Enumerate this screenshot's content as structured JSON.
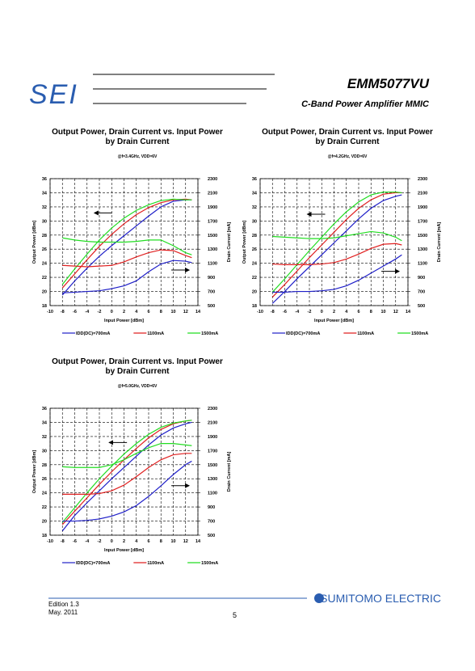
{
  "header": {
    "logo": "SEI",
    "part_number": "EMM5077VU",
    "description": "C-Band Power Amplifier MMIC"
  },
  "chart_data": [
    {
      "type": "line",
      "title": [
        "Output Power, Drain Current vs. Input Power",
        "by Drain Current"
      ],
      "conditions": "@f=3.4GHz,  VDD=6V",
      "x_label": "Input Power  [dBm]",
      "y_label": "Output Power  [dBm]",
      "y2_label": "Drain Current  [mA]",
      "x": [
        -8,
        -6,
        -4,
        -2,
        0,
        2,
        4,
        6,
        8,
        10,
        12,
        13
      ],
      "xlim": [
        -10,
        14
      ],
      "xticks": [
        -10,
        -8,
        -6,
        -4,
        -2,
        0,
        2,
        4,
        6,
        8,
        10,
        12,
        14
      ],
      "ylim": [
        18,
        36
      ],
      "yticks": [
        18,
        20,
        22,
        24,
        26,
        28,
        30,
        32,
        34,
        36
      ],
      "y2lim": [
        500,
        2300
      ],
      "y2ticks": [
        500,
        700,
        900,
        1100,
        1300,
        1500,
        1700,
        1900,
        2100,
        2300
      ],
      "grid": true,
      "series": [
        {
          "name": "IDD(DC)=700mA",
          "color": "#1f1fc8",
          "values": [
            19.5,
            21.5,
            23.3,
            25,
            26.5,
            27.9,
            29.3,
            30.7,
            32,
            32.8,
            33,
            33
          ]
        },
        {
          "name": "1100mA",
          "color": "#e02020",
          "values": [
            20.5,
            22.5,
            24.5,
            26.4,
            28.1,
            29.6,
            30.9,
            31.9,
            32.6,
            33,
            33.1,
            33
          ]
        },
        {
          "name": "1500mA",
          "color": "#22dd22",
          "values": [
            21,
            23.2,
            25.3,
            27.3,
            29,
            30.4,
            31.5,
            32.3,
            32.9,
            33.1,
            33,
            33
          ]
        },
        {
          "color": "#1f1fc8",
          "axis": "y2",
          "values": [
            680,
            690,
            700,
            710,
            740,
            780,
            850,
            980,
            1090,
            1140,
            1130,
            1110
          ]
        },
        {
          "color": "#e02020",
          "axis": "y2",
          "values": [
            1070,
            1060,
            1050,
            1060,
            1070,
            1120,
            1190,
            1250,
            1290,
            1280,
            1210,
            1180
          ]
        },
        {
          "color": "#22dd22",
          "axis": "y2",
          "values": [
            1460,
            1430,
            1410,
            1400,
            1400,
            1400,
            1410,
            1430,
            1430,
            1350,
            1250,
            1220
          ]
        }
      ]
    },
    {
      "type": "line",
      "title": [
        "Output Power, Drain Current vs. Input Power",
        "by Drain Current"
      ],
      "conditions": "@f=4.2GHz,  VDD=6V",
      "x_label": "Input Power  [dBm]",
      "y_label": "Output Power  [dBm]",
      "y2_label": "Drain Current  [mA]",
      "x": [
        -8,
        -6,
        -4,
        -2,
        0,
        2,
        4,
        6,
        8,
        10,
        12,
        13
      ],
      "xlim": [
        -10,
        14
      ],
      "xticks": [
        -10,
        -8,
        -6,
        -4,
        -2,
        0,
        2,
        4,
        6,
        8,
        10,
        12,
        14
      ],
      "ylim": [
        18,
        36
      ],
      "yticks": [
        18,
        20,
        22,
        24,
        26,
        28,
        30,
        32,
        34,
        36
      ],
      "y2lim": [
        500,
        2300
      ],
      "y2ticks": [
        500,
        700,
        900,
        1100,
        1300,
        1500,
        1700,
        1900,
        2100,
        2300
      ],
      "grid": true,
      "series": [
        {
          "name": "IDD(DC)=700mA",
          "color": "#1f1fc8",
          "values": [
            18.3,
            20,
            21.8,
            23.5,
            25.2,
            26.9,
            28.6,
            30.3,
            31.8,
            32.9,
            33.5,
            33.7
          ]
        },
        {
          "name": "1100mA",
          "color": "#e02020",
          "values": [
            19.2,
            21,
            22.9,
            24.8,
            26.6,
            28.4,
            30.2,
            31.8,
            33,
            33.8,
            34,
            34
          ]
        },
        {
          "name": "1500mA",
          "color": "#22dd22",
          "values": [
            19.9,
            21.8,
            23.8,
            25.8,
            27.7,
            29.6,
            31.3,
            32.7,
            33.7,
            34.1,
            34.1,
            34
          ]
        },
        {
          "color": "#1f1fc8",
          "axis": "y2",
          "values": [
            690,
            690,
            700,
            700,
            710,
            730,
            780,
            860,
            960,
            1060,
            1160,
            1220
          ]
        },
        {
          "color": "#e02020",
          "axis": "y2",
          "values": [
            1090,
            1080,
            1080,
            1080,
            1090,
            1110,
            1160,
            1230,
            1310,
            1370,
            1380,
            1360
          ]
        },
        {
          "color": "#22dd22",
          "axis": "y2",
          "values": [
            1480,
            1470,
            1460,
            1450,
            1450,
            1460,
            1490,
            1520,
            1550,
            1530,
            1470,
            1420
          ]
        }
      ]
    },
    {
      "type": "line",
      "title": [
        "Output Power, Drain Current vs. Input Power",
        "by Drain Current"
      ],
      "conditions": "@f=5.0GHz,  VDD=6V",
      "x_label": "Input Power  [dBm]",
      "y_label": "Output Power  [dBm]",
      "y2_label": "Drain Current  [mA]",
      "x": [
        -8,
        -6,
        -4,
        -2,
        0,
        2,
        4,
        6,
        8,
        10,
        12,
        13
      ],
      "xlim": [
        -10,
        14
      ],
      "xticks": [
        -10,
        -8,
        -6,
        -4,
        -2,
        0,
        2,
        4,
        6,
        8,
        10,
        12,
        14
      ],
      "ylim": [
        18,
        36
      ],
      "yticks": [
        18,
        20,
        22,
        24,
        26,
        28,
        30,
        32,
        34,
        36
      ],
      "y2lim": [
        500,
        2300
      ],
      "y2ticks": [
        500,
        700,
        900,
        1100,
        1300,
        1500,
        1700,
        1900,
        2100,
        2300
      ],
      "grid": true,
      "series": [
        {
          "name": "IDD(DC)=700mA",
          "color": "#1f1fc8",
          "values": [
            18.6,
            20.8,
            22.6,
            24.3,
            26,
            27.6,
            29.2,
            30.8,
            32.2,
            33.2,
            33.8,
            34
          ]
        },
        {
          "name": "1100mA",
          "color": "#e02020",
          "values": [
            19.5,
            21.4,
            23.3,
            25.2,
            27,
            28.7,
            30.3,
            31.8,
            33,
            33.8,
            34.2,
            34.3
          ]
        },
        {
          "name": "1500mA",
          "color": "#22dd22",
          "values": [
            19.8,
            21.9,
            24,
            26,
            27.8,
            29.5,
            31,
            32.3,
            33.3,
            33.9,
            34.2,
            34.3
          ]
        },
        {
          "color": "#1f1fc8",
          "axis": "y2",
          "values": [
            700,
            700,
            710,
            730,
            770,
            830,
            920,
            1050,
            1200,
            1360,
            1500,
            1550
          ]
        },
        {
          "color": "#e02020",
          "axis": "y2",
          "values": [
            1080,
            1080,
            1080,
            1090,
            1130,
            1210,
            1330,
            1460,
            1570,
            1640,
            1660,
            1660
          ]
        },
        {
          "color": "#22dd22",
          "axis": "y2",
          "values": [
            1470,
            1460,
            1460,
            1460,
            1500,
            1570,
            1660,
            1740,
            1800,
            1800,
            1780,
            1770
          ]
        }
      ]
    }
  ],
  "footer": {
    "edition": "Edition 1.3",
    "date": "May. 2011",
    "page": "5",
    "company": "SUMITOMO ELECTRIC"
  }
}
